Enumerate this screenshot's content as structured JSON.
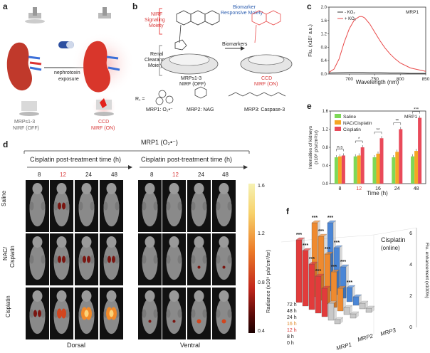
{
  "figure": {
    "panel_a": {
      "letter": "a",
      "arrow_label_line1": "nephrotoxin",
      "arrow_label_line2": "exposure",
      "probe_label": "MRPs1-3",
      "probe_state": "NIRF (OFF)",
      "product_label": "CCD",
      "product_state": "NIRF (ON)"
    },
    "panel_b": {
      "letter": "b",
      "nirf_line1": "NIRF",
      "nirf_line2": "Signaling",
      "nirf_line3": "Moiety",
      "biomarker_line1": "Biomarker",
      "biomarker_line2": "Responsive Moiety",
      "renal_line1": "Renal",
      "renal_line2": "Clearance",
      "renal_line3": "Moiety",
      "biomarkers_arrow": "Biomarkers",
      "probe_name": "MRPs1-3",
      "probe_state": "NIRF (OFF)",
      "product_name": "CCD",
      "product_state": "NIRF (ON)",
      "r_label": "R₁ =",
      "mrp1": "MRP1: O₂•⁻",
      "mrp2": "MRP2: NAG",
      "mrp3": "MRP3: Caspase-3"
    },
    "panel_c": {
      "letter": "c",
      "ylabel": "Flu. (x10⁷ a.u.)",
      "xlabel": "Wavelength (nm)",
      "legend_minus": "- KO₂",
      "legend_plus": "+ KO₂",
      "probe": "MRP1",
      "xticks": [
        "700",
        "750",
        "800",
        "850"
      ],
      "yticks": [
        "0.0",
        "0.4",
        "0.8",
        "1.2",
        "1.6",
        "2.0"
      ],
      "color_minus": "#333333",
      "color_plus": "#e94a4a"
    },
    "panel_d": {
      "letter": "d",
      "title": "MRP1 (O₂•⁻)",
      "header_dorsal": "Cisplatin post-treatment time (h)",
      "header_ventral": "Cisplatin post-treatment time (h)",
      "times": [
        "8",
        "12",
        "24",
        "48"
      ],
      "rows": [
        "Saline",
        "NAC/\nCisplatin",
        "Cisplatin"
      ],
      "row_saline": "Saline",
      "row_nac_line1": "NAC/",
      "row_nac_line2": "Cisplatin",
      "row_cis": "Cisplatin",
      "dorsal": "Dorsal",
      "ventral": "Ventral",
      "colorbar_label": "Radiance (x10⁶ p/s/cm²/sr)",
      "colorbar_ticks": [
        "1.6",
        "1.2",
        "0.8",
        "0.4"
      ]
    },
    "panel_e": {
      "letter": "e",
      "ylabel_line1": "Intensities of kidneys",
      "ylabel_line2": "(x10⁶ p/s/cm²/sr)",
      "xlabel": "Time (h)",
      "probe": "MRP1",
      "legend": [
        "Saline",
        "NAC/Cisplatin",
        "Cisplatin"
      ],
      "colors": [
        "#7ed957",
        "#f5a623",
        "#e94a5a"
      ],
      "yticks": [
        "0.0",
        "0.4",
        "0.8",
        "1.2",
        "1.6"
      ],
      "sig": [
        "n.s",
        "*",
        "**",
        "**",
        "***"
      ]
    },
    "panel_f": {
      "letter": "f",
      "label_line1": "Cisplatin",
      "label_line2": "(online)",
      "zlabel": "Flu. enhancement (x100%)",
      "zticks": [
        "0",
        "2",
        "4",
        "6"
      ],
      "time_labels": [
        "72 h",
        "48 h",
        "24 h",
        "16 h",
        "12 h",
        "8 h",
        "0 h"
      ],
      "probes": [
        "MRP1",
        "MRP2",
        "MRP3"
      ],
      "stars": "***"
    }
  },
  "chart_data": [
    {
      "type": "line",
      "panel": "c",
      "xlabel": "Wavelength (nm)",
      "ylabel": "Flu. (x10⁷ a.u.)",
      "xlim": [
        660,
        850
      ],
      "ylim": [
        0,
        2.0
      ],
      "series": [
        {
          "name": "- KO₂",
          "x": [
            660,
            680,
            700,
            720,
            740,
            760,
            780,
            800,
            820,
            850
          ],
          "y": [
            0.03,
            0.04,
            0.05,
            0.05,
            0.04,
            0.04,
            0.03,
            0.03,
            0.02,
            0.02
          ]
        },
        {
          "name": "+ KO₂",
          "x": [
            660,
            670,
            680,
            690,
            700,
            710,
            720,
            725,
            730,
            740,
            750,
            760,
            770,
            780,
            790,
            800,
            820,
            850
          ],
          "y": [
            0.05,
            0.15,
            0.45,
            0.95,
            1.35,
            1.62,
            1.72,
            1.72,
            1.68,
            1.5,
            1.25,
            1.0,
            0.78,
            0.6,
            0.45,
            0.33,
            0.18,
            0.08
          ]
        }
      ]
    },
    {
      "type": "bar",
      "panel": "e",
      "xlabel": "Time (h)",
      "ylabel": "Intensities of kidneys (x10⁶ p/s/cm²/sr)",
      "categories": [
        "8",
        "12",
        "16",
        "24",
        "48"
      ],
      "ylim": [
        0,
        1.6
      ],
      "series": [
        {
          "name": "Saline",
          "values": [
            0.58,
            0.6,
            0.58,
            0.58,
            0.6
          ]
        },
        {
          "name": "NAC/Cisplatin",
          "values": [
            0.6,
            0.62,
            0.66,
            0.7,
            0.72
          ]
        },
        {
          "name": "Cisplatin",
          "values": [
            0.62,
            0.8,
            1.0,
            1.2,
            1.45
          ]
        }
      ]
    },
    {
      "type": "bar",
      "panel": "f",
      "zlabel": "Flu. enhancement (x100%)",
      "zlim": [
        0,
        6
      ],
      "x": [
        "0 h",
        "8 h",
        "12 h",
        "16 h",
        "24 h",
        "48 h",
        "72 h"
      ],
      "series": [
        {
          "name": "MRP1",
          "values": [
            0.3,
            1.2,
            2.0,
            2.6,
            3.2,
            3.9,
            4.4
          ]
        },
        {
          "name": "MRP2",
          "values": [
            0.3,
            0.5,
            1.6,
            2.5,
            3.5,
            4.5,
            5.2
          ]
        },
        {
          "name": "MRP3",
          "values": [
            0.3,
            0.4,
            0.6,
            1.0,
            2.2,
            3.3,
            4.8
          ]
        }
      ]
    }
  ]
}
